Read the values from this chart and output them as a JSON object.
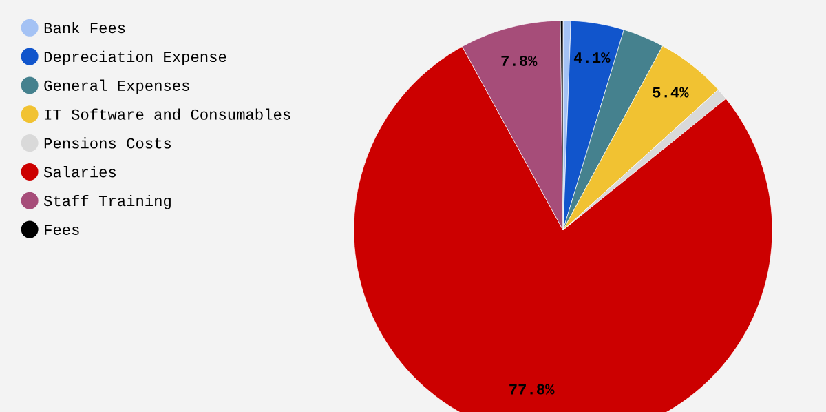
{
  "chart_data": {
    "type": "pie",
    "categories": [
      "Bank Fees",
      "Depreciation Expense",
      "General Expenses",
      "IT Software and Consumables",
      "Pensions Costs",
      "Salaries",
      "Staff Training",
      "Fees"
    ],
    "values": [
      0.6,
      4.1,
      3.2,
      5.4,
      0.9,
      77.8,
      7.8,
      0.2
    ],
    "colors": [
      "#a4c2f4",
      "#1155cc",
      "#45818e",
      "#f1c232",
      "#d9d9d9",
      "#cc0000",
      "#a64d79",
      "#000000"
    ],
    "value_labels": [
      null,
      "4.1%",
      null,
      "5.4%",
      null,
      "77.8%",
      "7.8%",
      null
    ],
    "legend": "top left"
  }
}
